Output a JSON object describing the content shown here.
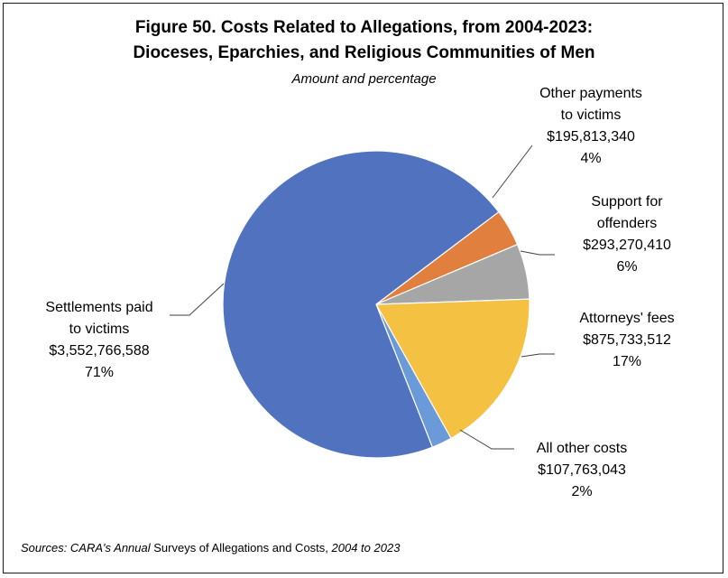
{
  "chart_data": {
    "type": "pie",
    "title": "Figure 50. Costs Related to Allegations, from 2004-2023:",
    "title_line2": "Dioceses, Eparchies, and Religious Communities of Men",
    "subtitle": "Amount and percentage",
    "slices": [
      {
        "name_lines": [
          "Other payments",
          "to victims"
        ],
        "amount": "$195,813,340",
        "percent_label": "4%",
        "value": 195813340,
        "color": "#E07F3E"
      },
      {
        "name_lines": [
          "Support for",
          "offenders"
        ],
        "amount": "$293,270,410",
        "percent_label": "6%",
        "value": 293270410,
        "color": "#A6A6A6"
      },
      {
        "name_lines": [
          "Attorneys' fees"
        ],
        "amount": "$875,733,512",
        "percent_label": "17%",
        "value": 875733512,
        "color": "#F4C142"
      },
      {
        "name_lines": [
          "All other costs"
        ],
        "amount": "$107,763,043",
        "percent_label": "2%",
        "value": 107763043,
        "color": "#6A9BD8"
      },
      {
        "name_lines": [
          "Settlements paid",
          "to victims"
        ],
        "amount": "$3,552,766,588",
        "percent_label": "71%",
        "value": 3552766588,
        "color": "#5173BF"
      }
    ],
    "legend": "none"
  },
  "source": {
    "part1": "Sources: CARA's Annual",
    "part2": " Surveys of Allegations and Costs,",
    "part3": " 2004 to 2023"
  }
}
